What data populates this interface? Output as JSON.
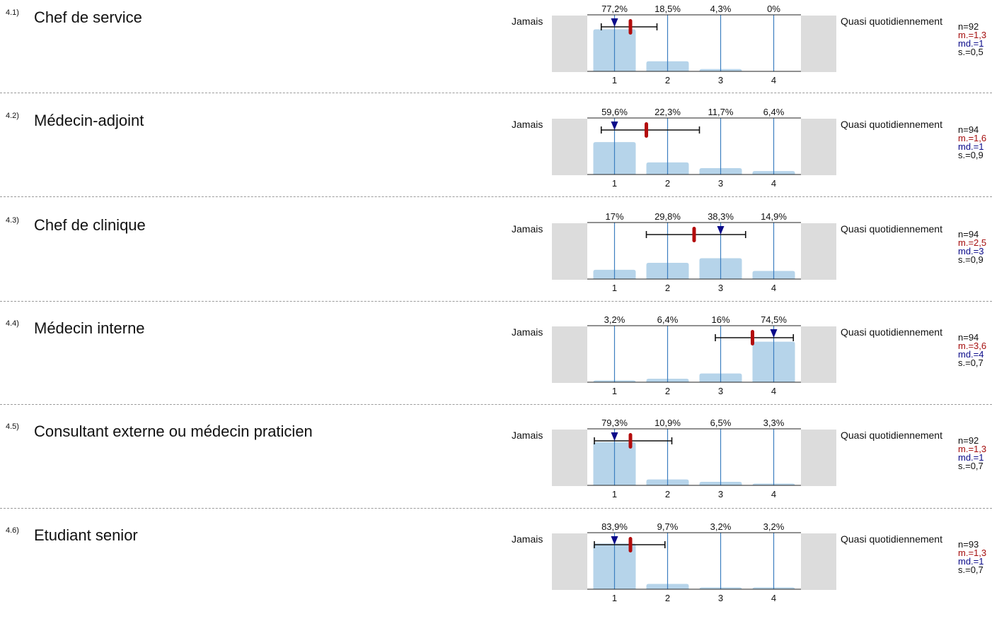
{
  "scale": {
    "left_label": "Jamais",
    "right_label": "Quasi quotidiennement",
    "ticks": [
      "1",
      "2",
      "3",
      "4"
    ]
  },
  "colors": {
    "bar": "#b6d4ea",
    "gridline": "#3c7fc0",
    "side_box": "#dcdcdc",
    "mean": "#b30c0c",
    "median": "#0b0b8a",
    "range": "#111111"
  },
  "chart_data": [
    {
      "type": "bar",
      "number": "4.1)",
      "title": "Chef de service",
      "categories": [
        "1",
        "2",
        "3",
        "4"
      ],
      "values": [
        77.2,
        18.5,
        4.3,
        0
      ],
      "value_labels": [
        "77,2%",
        "18,5%",
        "4,3%",
        "0%"
      ],
      "n": "n=92",
      "mean": 1.3,
      "mean_label": "m.=1,3",
      "median": 1,
      "median_label": "md.=1",
      "sd": 0.5,
      "sd_label": "s.=0,5",
      "range": [
        0.75,
        1.8
      ]
    },
    {
      "type": "bar",
      "number": "4.2)",
      "title": "Médecin-adjoint",
      "categories": [
        "1",
        "2",
        "3",
        "4"
      ],
      "values": [
        59.6,
        22.3,
        11.7,
        6.4
      ],
      "value_labels": [
        "59,6%",
        "22,3%",
        "11,7%",
        "6,4%"
      ],
      "n": "n=94",
      "mean": 1.6,
      "mean_label": "m.=1,6",
      "median": 1,
      "median_label": "md.=1",
      "sd": 0.9,
      "sd_label": "s.=0,9",
      "range": [
        0.75,
        2.6
      ]
    },
    {
      "type": "bar",
      "number": "4.3)",
      "title": "Chef de clinique",
      "categories": [
        "1",
        "2",
        "3",
        "4"
      ],
      "values": [
        17,
        29.8,
        38.3,
        14.9
      ],
      "value_labels": [
        "17%",
        "29,8%",
        "38,3%",
        "14,9%"
      ],
      "n": "n=94",
      "mean": 2.5,
      "mean_label": "m.=2,5",
      "median": 3,
      "median_label": "md.=3",
      "sd": 0.9,
      "sd_label": "s.=0,9",
      "range": [
        1.6,
        3.47
      ]
    },
    {
      "type": "bar",
      "number": "4.4)",
      "title": "Médecin interne",
      "categories": [
        "1",
        "2",
        "3",
        "4"
      ],
      "values": [
        3.2,
        6.4,
        16,
        74.5
      ],
      "value_labels": [
        "3,2%",
        "6,4%",
        "16%",
        "74,5%"
      ],
      "n": "n=94",
      "mean": 3.6,
      "mean_label": "m.=3,6",
      "median": 4,
      "median_label": "md.=4",
      "sd": 0.7,
      "sd_label": "s.=0,7",
      "range": [
        2.9,
        4.37
      ]
    },
    {
      "type": "bar",
      "number": "4.5)",
      "title": "Consultant externe ou médecin praticien",
      "categories": [
        "1",
        "2",
        "3",
        "4"
      ],
      "values": [
        79.3,
        10.9,
        6.5,
        3.3
      ],
      "value_labels": [
        "79,3%",
        "10,9%",
        "6,5%",
        "3,3%"
      ],
      "n": "n=92",
      "mean": 1.3,
      "mean_label": "m.=1,3",
      "median": 1,
      "median_label": "md.=1",
      "sd": 0.7,
      "sd_label": "s.=0,7",
      "range": [
        0.62,
        2.08
      ]
    },
    {
      "type": "bar",
      "number": "4.6)",
      "title": "Etudiant senior",
      "categories": [
        "1",
        "2",
        "3",
        "4"
      ],
      "values": [
        83.9,
        9.7,
        3.2,
        3.2
      ],
      "value_labels": [
        "83,9%",
        "9,7%",
        "3,2%",
        "3,2%"
      ],
      "n": "n=93",
      "mean": 1.3,
      "mean_label": "m.=1,3",
      "median": 1,
      "median_label": "md.=1",
      "sd": 0.7,
      "sd_label": "s.=0,7",
      "range": [
        0.62,
        1.95
      ]
    }
  ]
}
